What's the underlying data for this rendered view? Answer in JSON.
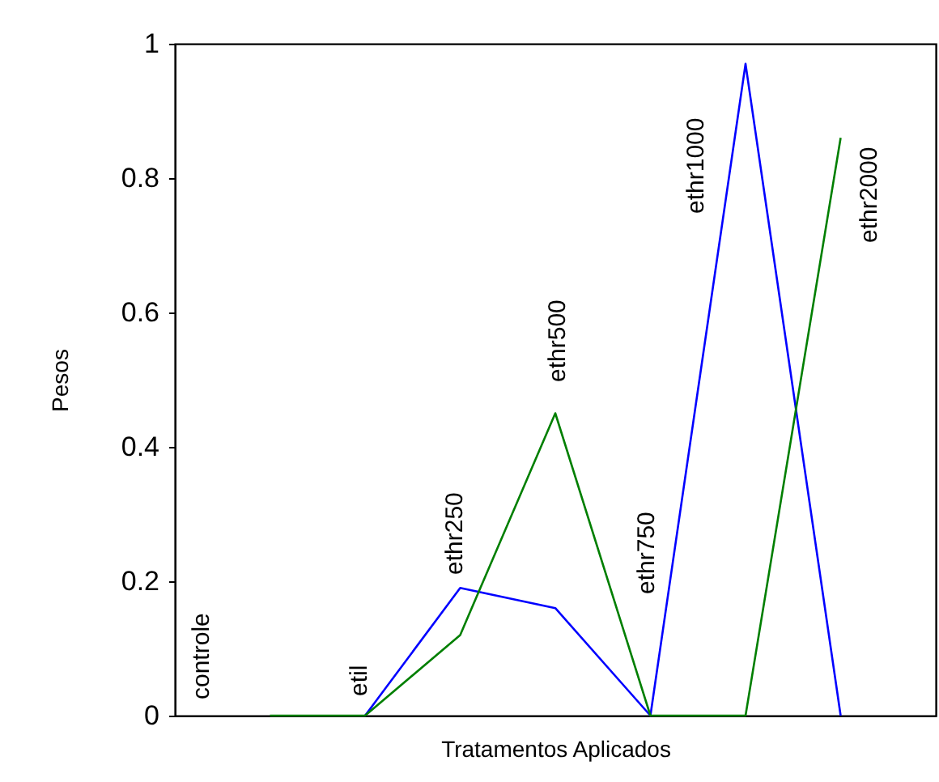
{
  "chart_data": {
    "type": "line",
    "xlabel": "Tratamentos Aplicados",
    "ylabel": "Pesos",
    "categories": [
      null,
      null,
      null,
      null,
      null,
      null,
      null
    ],
    "ylim": [
      0,
      1
    ],
    "yticks": [
      0,
      0.2,
      0.4,
      0.6,
      0.8,
      1
    ],
    "tick_labels": "y",
    "grid": false,
    "marker": "none",
    "line_style": "solid",
    "series": [
      {
        "color": "#0000ff",
        "values": [
          null,
          0,
          0.19,
          0.16,
          0,
          0.97,
          0
        ]
      },
      {
        "color": "#007f00",
        "values": [
          0,
          0,
          0.12,
          0.45,
          0,
          0,
          0.86
        ]
      }
    ],
    "annotations": [
      "controle",
      "etil",
      "ethr250",
      "ethr500",
      "ethr750",
      "ethr1000",
      "ethr2000"
    ]
  }
}
